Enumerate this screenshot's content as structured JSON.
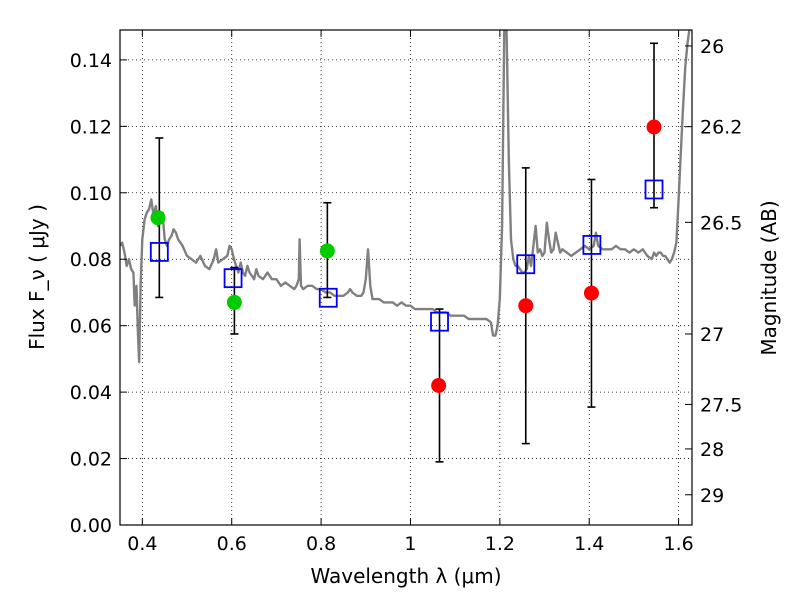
{
  "chart_data": {
    "type": "scatter",
    "xlabel": "Wavelength  λ (μm)",
    "ylabel": "Flux  F_ν  ( μJy )",
    "ylabel_right": "Magnitude (AB)",
    "xlim": [
      0.35,
      1.63
    ],
    "ylim": [
      0.0,
      0.149
    ],
    "grid": true,
    "x_ticks": [
      0.4,
      0.6,
      0.8,
      1.0,
      1.2,
      1.4,
      1.6
    ],
    "x_tick_labels": [
      "0.4",
      "0.6",
      "0.8",
      "1",
      "1.2",
      "1.4",
      "1.6"
    ],
    "y_ticks": [
      0.0,
      0.02,
      0.04,
      0.06,
      0.08,
      0.1,
      0.12,
      0.14
    ],
    "y_tick_labels": [
      "0.00",
      "0.02",
      "0.04",
      "0.06",
      "0.08",
      "0.10",
      "0.12",
      "0.14"
    ],
    "right_ticks": [
      {
        "flux": 0.1442,
        "label": "26"
      },
      {
        "flux": 0.1199,
        "label": "26.2"
      },
      {
        "flux": 0.0911,
        "label": "26.5"
      },
      {
        "flux": 0.0575,
        "label": "27"
      },
      {
        "flux": 0.0363,
        "label": "27.5"
      },
      {
        "flux": 0.0229,
        "label": "28"
      },
      {
        "flux": 0.0091,
        "label": "29"
      }
    ],
    "model_spectrum": {
      "color": "#808080",
      "points": [
        [
          0.35,
          0.084
        ],
        [
          0.355,
          0.085
        ],
        [
          0.36,
          0.082
        ],
        [
          0.365,
          0.078
        ],
        [
          0.37,
          0.08
        ],
        [
          0.375,
          0.077
        ],
        [
          0.38,
          0.076
        ],
        [
          0.383,
          0.066
        ],
        [
          0.387,
          0.072
        ],
        [
          0.39,
          0.058
        ],
        [
          0.393,
          0.049
        ],
        [
          0.396,
          0.072
        ],
        [
          0.4,
          0.086
        ],
        [
          0.405,
          0.092
        ],
        [
          0.41,
          0.094
        ],
        [
          0.415,
          0.095
        ],
        [
          0.42,
          0.098
        ],
        [
          0.425,
          0.093
        ],
        [
          0.43,
          0.096
        ],
        [
          0.435,
          0.09
        ],
        [
          0.44,
          0.091
        ],
        [
          0.445,
          0.094
        ],
        [
          0.45,
          0.086
        ],
        [
          0.455,
          0.084
        ],
        [
          0.46,
          0.086
        ],
        [
          0.465,
          0.087
        ],
        [
          0.47,
          0.089
        ],
        [
          0.475,
          0.088
        ],
        [
          0.48,
          0.086
        ],
        [
          0.49,
          0.084
        ],
        [
          0.5,
          0.081
        ],
        [
          0.51,
          0.08
        ],
        [
          0.52,
          0.079
        ],
        [
          0.53,
          0.081
        ],
        [
          0.54,
          0.078
        ],
        [
          0.55,
          0.077
        ],
        [
          0.56,
          0.08
        ],
        [
          0.565,
          0.083
        ],
        [
          0.57,
          0.079
        ],
        [
          0.58,
          0.08
        ],
        [
          0.59,
          0.081
        ],
        [
          0.595,
          0.084
        ],
        [
          0.6,
          0.083
        ],
        [
          0.605,
          0.08
        ],
        [
          0.61,
          0.078
        ],
        [
          0.615,
          0.076
        ],
        [
          0.62,
          0.079
        ],
        [
          0.625,
          0.076
        ],
        [
          0.63,
          0.075
        ],
        [
          0.635,
          0.078
        ],
        [
          0.64,
          0.076
        ],
        [
          0.65,
          0.074
        ],
        [
          0.655,
          0.077
        ],
        [
          0.66,
          0.075
        ],
        [
          0.67,
          0.074
        ],
        [
          0.68,
          0.076
        ],
        [
          0.69,
          0.074
        ],
        [
          0.7,
          0.074
        ],
        [
          0.71,
          0.072
        ],
        [
          0.72,
          0.073
        ],
        [
          0.73,
          0.072
        ],
        [
          0.74,
          0.071
        ],
        [
          0.745,
          0.072
        ],
        [
          0.75,
          0.074
        ],
        [
          0.752,
          0.086
        ],
        [
          0.755,
          0.072
        ],
        [
          0.76,
          0.071
        ],
        [
          0.77,
          0.072
        ],
        [
          0.78,
          0.072
        ],
        [
          0.79,
          0.071
        ],
        [
          0.8,
          0.071
        ],
        [
          0.81,
          0.07
        ],
        [
          0.82,
          0.07
        ],
        [
          0.83,
          0.069
        ],
        [
          0.84,
          0.069
        ],
        [
          0.85,
          0.069
        ],
        [
          0.86,
          0.07
        ],
        [
          0.865,
          0.071
        ],
        [
          0.87,
          0.07
        ],
        [
          0.88,
          0.069
        ],
        [
          0.89,
          0.069
        ],
        [
          0.895,
          0.07
        ],
        [
          0.9,
          0.074
        ],
        [
          0.905,
          0.083
        ],
        [
          0.91,
          0.072
        ],
        [
          0.915,
          0.068
        ],
        [
          0.92,
          0.068
        ],
        [
          0.93,
          0.068
        ],
        [
          0.94,
          0.067
        ],
        [
          0.95,
          0.067
        ],
        [
          0.96,
          0.067
        ],
        [
          0.97,
          0.066
        ],
        [
          0.98,
          0.067
        ],
        [
          0.99,
          0.066
        ],
        [
          1.0,
          0.066
        ],
        [
          1.01,
          0.065
        ],
        [
          1.02,
          0.065
        ],
        [
          1.03,
          0.065
        ],
        [
          1.04,
          0.065
        ],
        [
          1.05,
          0.065
        ],
        [
          1.06,
          0.064
        ],
        [
          1.07,
          0.064
        ],
        [
          1.08,
          0.064
        ],
        [
          1.09,
          0.063
        ],
        [
          1.1,
          0.063
        ],
        [
          1.11,
          0.063
        ],
        [
          1.12,
          0.063
        ],
        [
          1.13,
          0.062
        ],
        [
          1.14,
          0.062
        ],
        [
          1.15,
          0.062
        ],
        [
          1.16,
          0.062
        ],
        [
          1.17,
          0.062
        ],
        [
          1.18,
          0.061
        ],
        [
          1.185,
          0.057
        ],
        [
          1.19,
          0.057
        ],
        [
          1.195,
          0.06
        ],
        [
          1.2,
          0.068
        ],
        [
          1.205,
          0.09
        ],
        [
          1.21,
          0.15
        ],
        [
          1.215,
          0.15
        ],
        [
          1.22,
          0.11
        ],
        [
          1.225,
          0.086
        ],
        [
          1.23,
          0.08
        ],
        [
          1.235,
          0.078
        ],
        [
          1.24,
          0.078
        ],
        [
          1.245,
          0.077
        ],
        [
          1.25,
          0.076
        ],
        [
          1.255,
          0.076
        ],
        [
          1.26,
          0.077
        ],
        [
          1.265,
          0.081
        ],
        [
          1.27,
          0.078
        ],
        [
          1.275,
          0.084
        ],
        [
          1.28,
          0.09
        ],
        [
          1.285,
          0.082
        ],
        [
          1.29,
          0.083
        ],
        [
          1.295,
          0.081
        ],
        [
          1.3,
          0.082
        ],
        [
          1.305,
          0.091
        ],
        [
          1.31,
          0.086
        ],
        [
          1.315,
          0.082
        ],
        [
          1.32,
          0.083
        ],
        [
          1.325,
          0.088
        ],
        [
          1.33,
          0.085
        ],
        [
          1.335,
          0.082
        ],
        [
          1.34,
          0.083
        ],
        [
          1.35,
          0.082
        ],
        [
          1.36,
          0.081
        ],
        [
          1.37,
          0.082
        ],
        [
          1.38,
          0.083
        ],
        [
          1.39,
          0.084
        ],
        [
          1.4,
          0.083
        ],
        [
          1.41,
          0.084
        ],
        [
          1.415,
          0.088
        ],
        [
          1.42,
          0.084
        ],
        [
          1.43,
          0.083
        ],
        [
          1.44,
          0.083
        ],
        [
          1.45,
          0.083
        ],
        [
          1.46,
          0.084
        ],
        [
          1.47,
          0.083
        ],
        [
          1.48,
          0.083
        ],
        [
          1.49,
          0.082
        ],
        [
          1.5,
          0.083
        ],
        [
          1.51,
          0.082
        ],
        [
          1.52,
          0.083
        ],
        [
          1.53,
          0.081
        ],
        [
          1.54,
          0.08
        ],
        [
          1.545,
          0.082
        ],
        [
          1.55,
          0.081
        ],
        [
          1.555,
          0.082
        ],
        [
          1.56,
          0.082
        ],
        [
          1.565,
          0.081
        ],
        [
          1.57,
          0.081
        ],
        [
          1.575,
          0.08
        ],
        [
          1.58,
          0.079
        ],
        [
          1.585,
          0.08
        ],
        [
          1.59,
          0.082
        ],
        [
          1.595,
          0.085
        ],
        [
          1.6,
          0.098
        ],
        [
          1.605,
          0.112
        ],
        [
          1.61,
          0.126
        ],
        [
          1.615,
          0.138
        ],
        [
          1.62,
          0.145
        ],
        [
          1.625,
          0.15
        ]
      ]
    },
    "series": [
      {
        "color": "#00cc00",
        "marker": "filled-circle",
        "points": [
          {
            "x": 0.435,
            "y": 0.0925
          },
          {
            "x": 0.606,
            "y": 0.067
          },
          {
            "x": 0.814,
            "y": 0.0825
          }
        ]
      },
      {
        "color": "#ff0000",
        "marker": "filled-circle",
        "points": [
          {
            "x": 1.063,
            "y": 0.042
          },
          {
            "x": 1.258,
            "y": 0.066
          },
          {
            "x": 1.405,
            "y": 0.0698
          },
          {
            "x": 1.545,
            "y": 0.1198
          }
        ]
      },
      {
        "color": "#0000ff",
        "marker": "open-square",
        "points": [
          {
            "x": 0.438,
            "y": 0.0822
          },
          {
            "x": 0.603,
            "y": 0.0743
          },
          {
            "x": 0.816,
            "y": 0.0684
          },
          {
            "x": 1.065,
            "y": 0.0612
          },
          {
            "x": 1.258,
            "y": 0.0785
          },
          {
            "x": 1.406,
            "y": 0.0843
          },
          {
            "x": 1.545,
            "y": 0.101
          }
        ]
      }
    ],
    "error_bars": [
      {
        "x": 0.438,
        "low": 0.0685,
        "high": 0.1165
      },
      {
        "x": 0.606,
        "low": 0.0575,
        "high": 0.0775
      },
      {
        "x": 0.814,
        "low": 0.0685,
        "high": 0.097
      },
      {
        "x": 1.065,
        "low": 0.019,
        "high": 0.065
      },
      {
        "x": 1.258,
        "low": 0.0245,
        "high": 0.1075
      },
      {
        "x": 1.405,
        "low": 0.0355,
        "high": 0.104
      },
      {
        "x": 1.545,
        "low": 0.0955,
        "high": 0.145
      }
    ]
  }
}
